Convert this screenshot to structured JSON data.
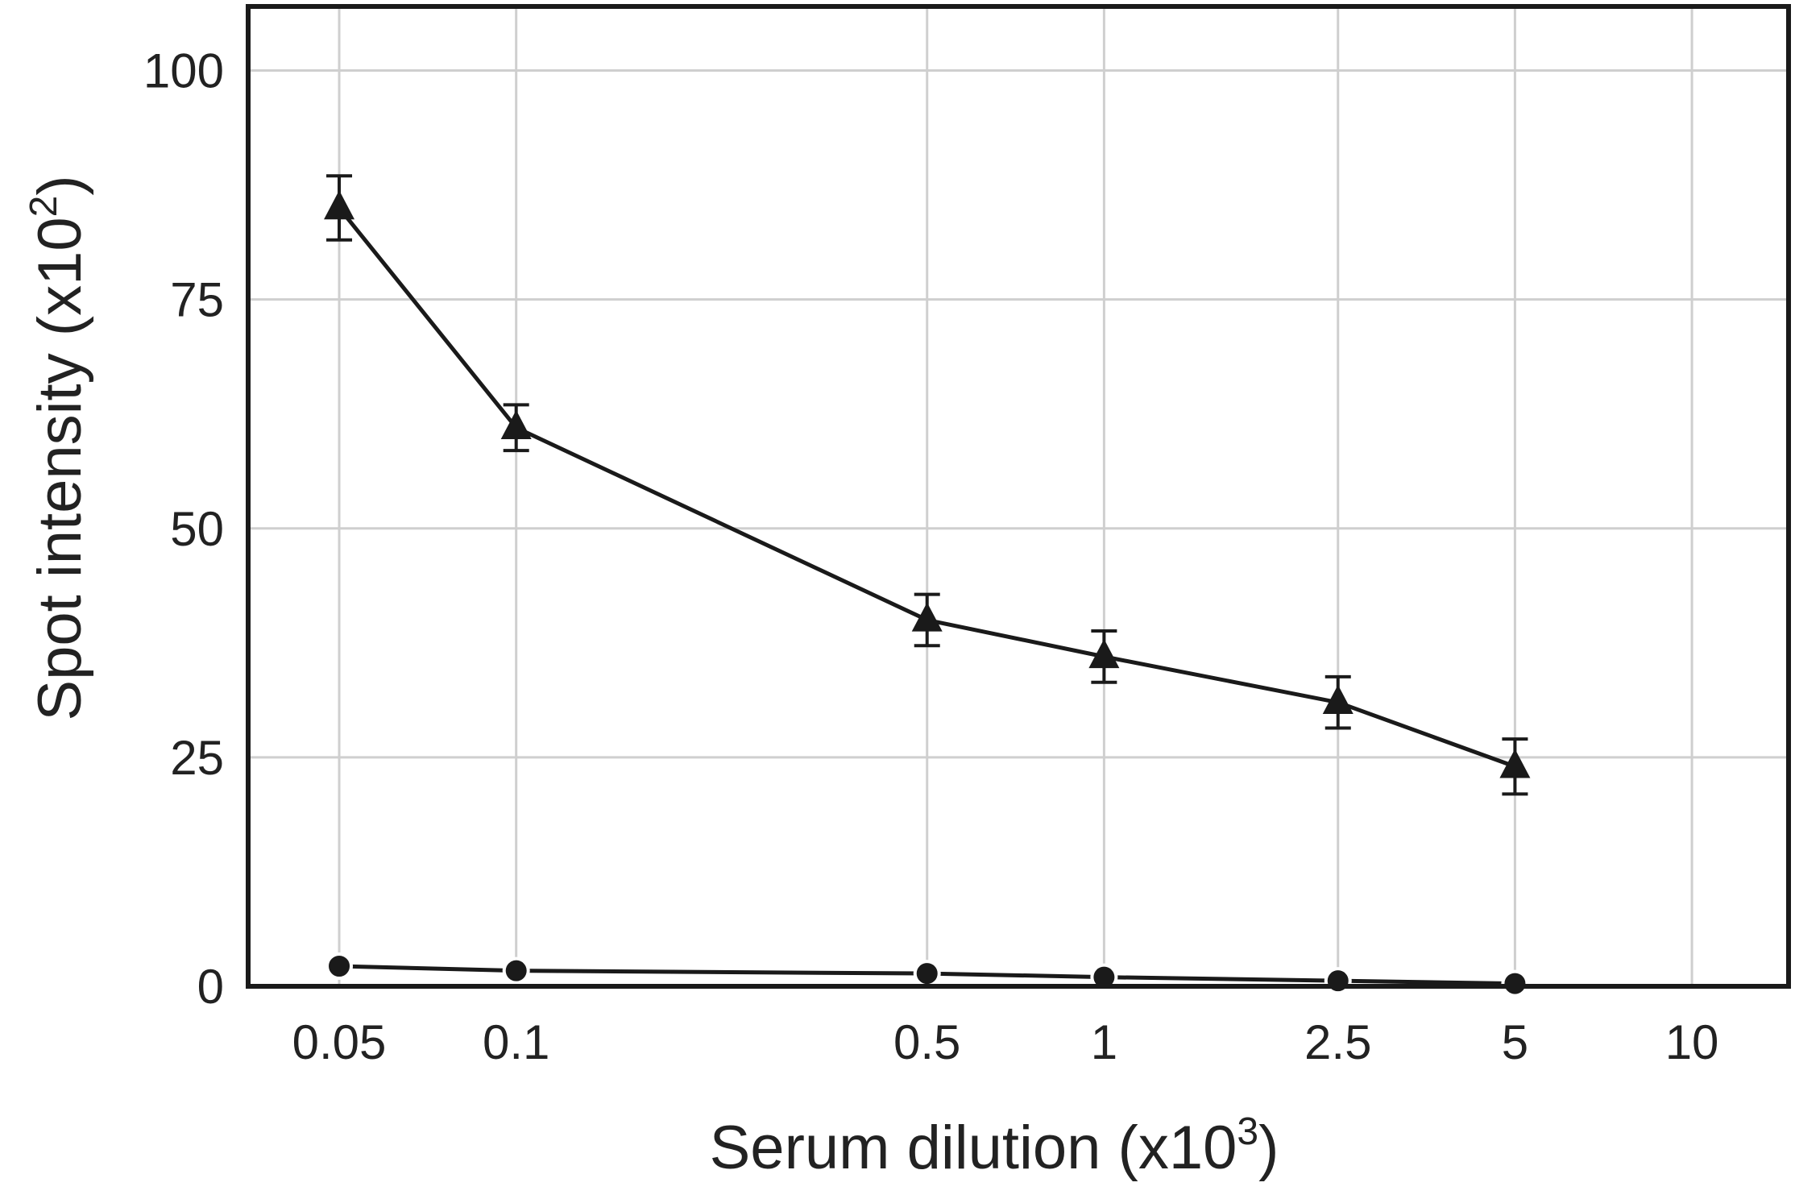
{
  "chart_data": {
    "type": "line",
    "xlabel": "Serum dilution (x10",
    "xlabel_sup": "3",
    "xlabel_close": ")",
    "ylabel": "Spot intensity (x10",
    "ylabel_sup": "2",
    "ylabel_close": ")",
    "x_scale": "log",
    "x_ticks": [
      "0.05",
      "0.1",
      "0.5",
      "1",
      "2.5",
      "5",
      "10"
    ],
    "x_tick_values": [
      0.05,
      0.1,
      0.5,
      1,
      2.5,
      5,
      10
    ],
    "y_ticks": [
      "0",
      "25",
      "50",
      "75",
      "100"
    ],
    "y_tick_values": [
      0,
      25,
      50,
      75,
      100
    ],
    "ylim": [
      0,
      107
    ],
    "xlim": [
      0.035,
      14.6
    ],
    "grid": true,
    "x": [
      0.05,
      0.1,
      0.5,
      1,
      2.5,
      5
    ],
    "series": [
      {
        "marker": "triangle",
        "values": [
          85,
          61,
          40,
          36,
          31,
          24
        ],
        "error": [
          3.5,
          2.5,
          2.8,
          2.8,
          2.8,
          3
        ]
      },
      {
        "marker": "circle",
        "values": [
          2.2,
          1.7,
          1.4,
          1.0,
          0.6,
          0.3
        ]
      }
    ],
    "colors": {
      "line": "#1a1a1a",
      "grid": "#cfcfcf",
      "text": "#222222"
    }
  }
}
